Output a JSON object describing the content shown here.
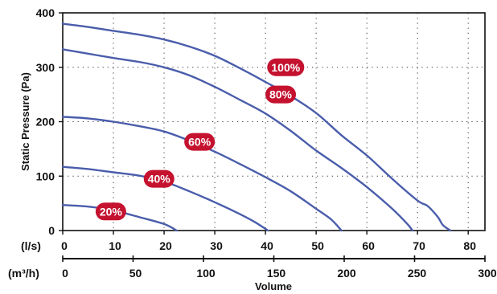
{
  "chart_data": {
    "type": "line",
    "ylabel": "Static Pressure (Pa)",
    "xlabel": "Volume",
    "ylim": [
      0,
      400
    ],
    "y_ticks": [
      0,
      100,
      200,
      300,
      400
    ],
    "x_axis_ls": {
      "unit_label": "(l/s)",
      "range": [
        0,
        83.3
      ],
      "ticks": [
        0,
        10,
        20,
        30,
        40,
        50,
        60,
        70,
        80
      ]
    },
    "x_axis_m3h": {
      "unit_label": "(m³/h)",
      "range": [
        0,
        300
      ],
      "ticks": [
        0,
        50,
        100,
        150,
        200,
        250,
        300
      ]
    },
    "grid": "dotted",
    "colors": {
      "curve": "#4a5dab",
      "label_bg": "#c4122f",
      "label_text": "#ffffff",
      "grid": "#333333",
      "axes": "#111111"
    },
    "series": [
      {
        "name": "100%",
        "label_at": [
          44,
          300
        ],
        "points": [
          [
            0,
            380
          ],
          [
            5,
            374
          ],
          [
            10,
            367
          ],
          [
            15,
            360
          ],
          [
            20,
            351
          ],
          [
            25,
            338
          ],
          [
            30,
            321
          ],
          [
            35,
            298
          ],
          [
            40,
            273
          ],
          [
            45,
            247
          ],
          [
            50,
            216
          ],
          [
            55,
            175
          ],
          [
            60,
            138
          ],
          [
            65,
            95
          ],
          [
            70,
            55
          ],
          [
            72,
            45
          ],
          [
            74,
            25
          ],
          [
            75,
            10
          ],
          [
            76.5,
            0
          ]
        ]
      },
      {
        "name": "80%",
        "label_at": [
          43,
          250
        ],
        "points": [
          [
            0,
            333
          ],
          [
            5,
            325
          ],
          [
            10,
            317
          ],
          [
            15,
            310
          ],
          [
            20,
            300
          ],
          [
            25,
            285
          ],
          [
            30,
            264
          ],
          [
            35,
            240
          ],
          [
            40,
            215
          ],
          [
            45,
            183
          ],
          [
            50,
            147
          ],
          [
            55,
            115
          ],
          [
            60,
            80
          ],
          [
            65,
            40
          ],
          [
            68,
            12
          ],
          [
            69,
            0
          ]
        ]
      },
      {
        "name": "60%",
        "label_at": [
          27,
          163
        ],
        "points": [
          [
            0,
            209
          ],
          [
            5,
            206
          ],
          [
            10,
            200
          ],
          [
            15,
            192
          ],
          [
            20,
            182
          ],
          [
            25,
            165
          ],
          [
            30,
            145
          ],
          [
            35,
            122
          ],
          [
            40,
            98
          ],
          [
            45,
            72
          ],
          [
            50,
            40
          ],
          [
            53,
            20
          ],
          [
            55,
            0
          ]
        ]
      },
      {
        "name": "40%",
        "label_at": [
          19,
          95
        ],
        "points": [
          [
            0,
            117
          ],
          [
            5,
            113
          ],
          [
            10,
            107
          ],
          [
            15,
            101
          ],
          [
            20,
            90
          ],
          [
            25,
            72
          ],
          [
            30,
            52
          ],
          [
            35,
            30
          ],
          [
            38,
            15
          ],
          [
            40.5,
            0
          ]
        ]
      },
      {
        "name": "20%",
        "label_at": [
          9.5,
          35
        ],
        "points": [
          [
            0,
            47
          ],
          [
            5,
            44
          ],
          [
            10,
            37
          ],
          [
            15,
            25
          ],
          [
            20,
            12
          ],
          [
            22.5,
            0
          ]
        ]
      }
    ]
  }
}
